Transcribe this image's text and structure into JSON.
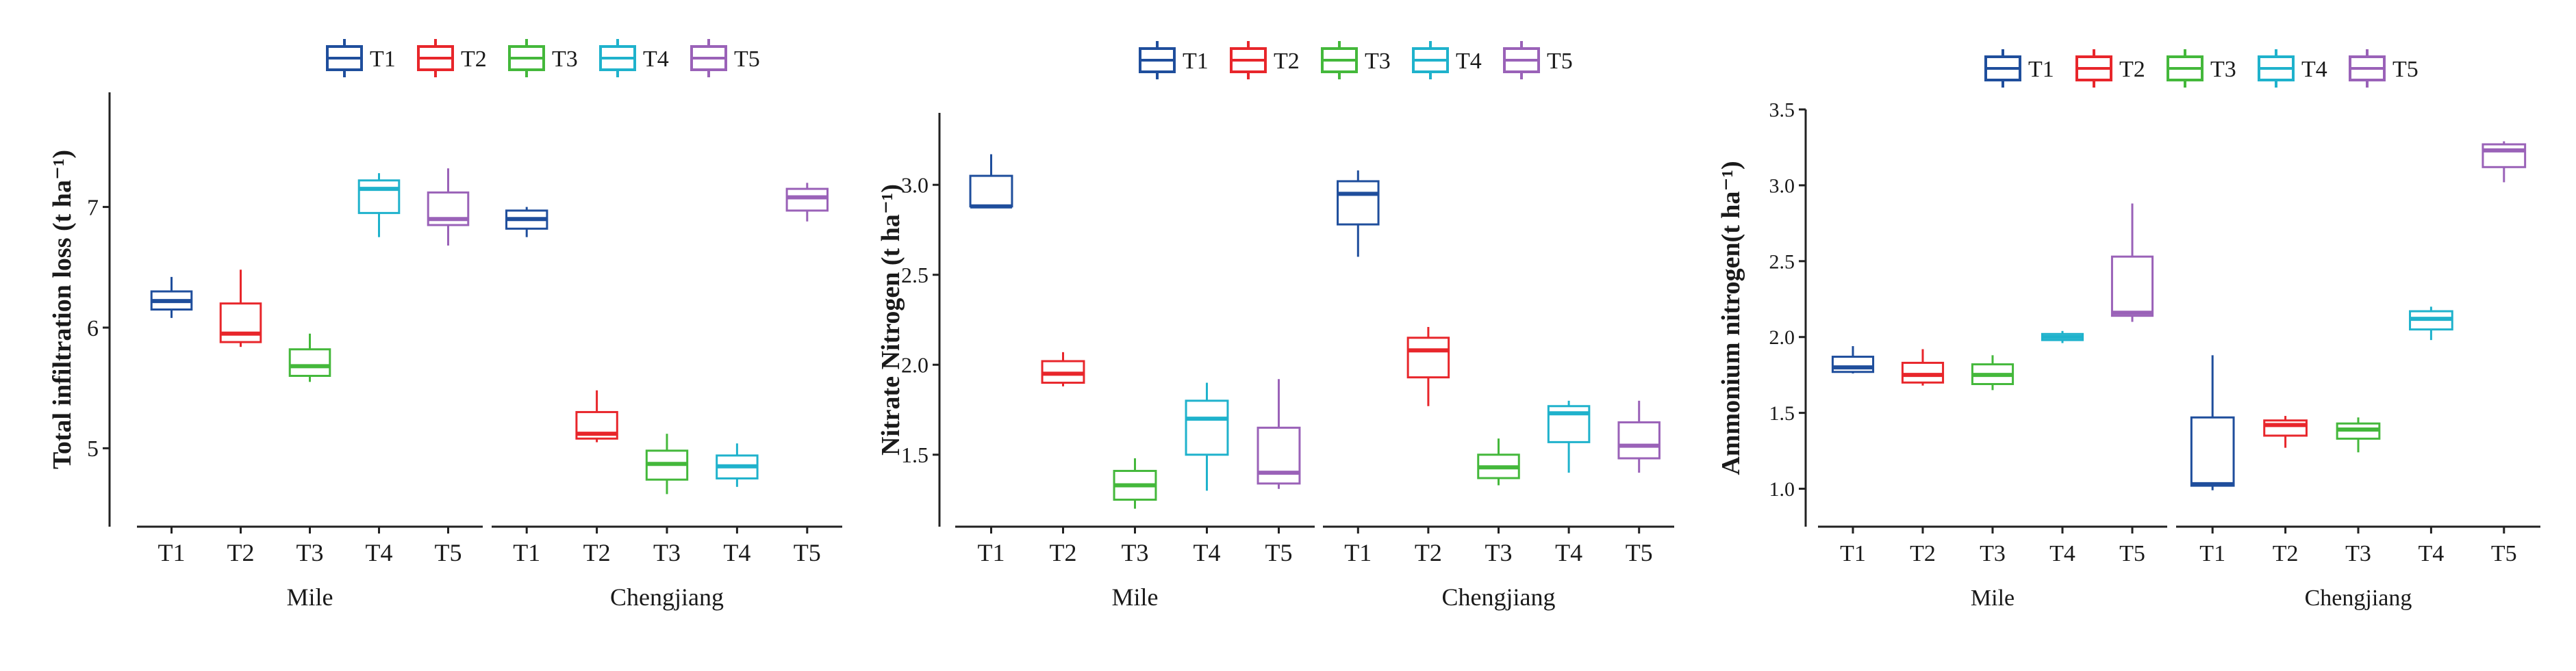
{
  "colors": {
    "T1": "#1f4e9c",
    "T2": "#e8262b",
    "T3": "#44b83b",
    "T4": "#1fb2cc",
    "T5": "#9a62b8",
    "axis": "#222222"
  },
  "chart_data": [
    {
      "type": "box",
      "title": "",
      "ylabel": "Total infiltration loss (t ha⁻¹)",
      "legend": [
        "T1",
        "T2",
        "T3",
        "T4",
        "T5"
      ],
      "legend_position": "top",
      "ylim": [
        4.35,
        7.95
      ],
      "yticks": [
        5,
        6,
        7
      ],
      "groups": [
        {
          "name": "Mile",
          "categories": [
            "T1",
            "T2",
            "T3",
            "T4",
            "T5"
          ],
          "boxes": [
            {
              "series": "T1",
              "min": 6.08,
              "q1": 6.15,
              "median": 6.22,
              "q3": 6.3,
              "max": 6.42
            },
            {
              "series": "T2",
              "min": 5.84,
              "q1": 5.88,
              "median": 5.95,
              "q3": 6.2,
              "max": 6.48
            },
            {
              "series": "T3",
              "min": 5.55,
              "q1": 5.6,
              "median": 5.68,
              "q3": 5.82,
              "max": 5.95
            },
            {
              "series": "T4",
              "min": 6.75,
              "q1": 6.95,
              "median": 7.15,
              "q3": 7.22,
              "max": 7.28
            },
            {
              "series": "T5",
              "min": 6.68,
              "q1": 6.85,
              "median": 6.9,
              "q3": 7.12,
              "max": 7.32
            }
          ]
        },
        {
          "name": "Chengjiang",
          "categories": [
            "T1",
            "T2",
            "T3",
            "T4",
            "T5"
          ],
          "boxes": [
            {
              "series": "T1",
              "min": 6.75,
              "q1": 6.82,
              "median": 6.9,
              "q3": 6.97,
              "max": 7.0
            },
            {
              "series": "T2",
              "min": 5.05,
              "q1": 5.08,
              "median": 5.12,
              "q3": 5.3,
              "max": 5.48
            },
            {
              "series": "T3",
              "min": 4.62,
              "q1": 4.74,
              "median": 4.87,
              "q3": 4.98,
              "max": 5.12
            },
            {
              "series": "T4",
              "min": 4.68,
              "q1": 4.75,
              "median": 4.85,
              "q3": 4.94,
              "max": 5.04
            },
            {
              "series": "T5",
              "min": 6.88,
              "q1": 6.97,
              "median": 7.08,
              "q3": 7.15,
              "max": 7.2
            }
          ]
        }
      ]
    },
    {
      "type": "box",
      "title": "",
      "ylabel": "Nitrate Nitrogen (t ha⁻¹)",
      "legend": [
        "T1",
        "T2",
        "T3",
        "T4",
        "T5"
      ],
      "legend_position": "top",
      "ylim": [
        1.1,
        3.4
      ],
      "yticks": [
        1.5,
        2.0,
        2.5,
        3.0
      ],
      "yticklabels": [
        "1.5",
        "2.0",
        "2.5",
        "3.0"
      ],
      "groups": [
        {
          "name": "Mile",
          "categories": [
            "T1",
            "T2",
            "T3",
            "T4",
            "T5"
          ],
          "boxes": [
            {
              "series": "T1",
              "min": 2.88,
              "q1": 2.88,
              "median": 2.88,
              "q3": 3.05,
              "max": 3.17
            },
            {
              "series": "T2",
              "min": 1.88,
              "q1": 1.9,
              "median": 1.95,
              "q3": 2.02,
              "max": 2.07
            },
            {
              "series": "T3",
              "min": 1.2,
              "q1": 1.25,
              "median": 1.33,
              "q3": 1.41,
              "max": 1.48
            },
            {
              "series": "T4",
              "min": 1.3,
              "q1": 1.5,
              "median": 1.7,
              "q3": 1.8,
              "max": 1.9
            },
            {
              "series": "T5",
              "min": 1.31,
              "q1": 1.34,
              "median": 1.4,
              "q3": 1.65,
              "max": 1.92
            }
          ]
        },
        {
          "name": "Chengjiang",
          "categories": [
            "T1",
            "T2",
            "T3",
            "T4",
            "T5"
          ],
          "boxes": [
            {
              "series": "T1",
              "min": 2.6,
              "q1": 2.78,
              "median": 2.95,
              "q3": 3.02,
              "max": 3.08
            },
            {
              "series": "T2",
              "min": 1.77,
              "q1": 1.93,
              "median": 2.08,
              "q3": 2.15,
              "max": 2.21
            },
            {
              "series": "T3",
              "min": 1.33,
              "q1": 1.37,
              "median": 1.43,
              "q3": 1.5,
              "max": 1.59
            },
            {
              "series": "T4",
              "min": 1.4,
              "q1": 1.57,
              "median": 1.73,
              "q3": 1.77,
              "max": 1.8
            },
            {
              "series": "T5",
              "min": 1.4,
              "q1": 1.48,
              "median": 1.55,
              "q3": 1.68,
              "max": 1.8
            }
          ]
        }
      ]
    },
    {
      "type": "box",
      "title": "",
      "ylabel": "Ammonium nitrogen(t ha⁻¹)",
      "legend": [
        "T1",
        "T2",
        "T3",
        "T4",
        "T5"
      ],
      "legend_position": "top",
      "ylim": [
        0.75,
        3.5
      ],
      "yticks": [
        1.0,
        1.5,
        2.0,
        2.5,
        3.0,
        3.5
      ],
      "yticklabels": [
        "1.0",
        "1.5",
        "2.0",
        "2.5",
        "3.0",
        "3.5"
      ],
      "groups": [
        {
          "name": "Mile",
          "categories": [
            "T1",
            "T2",
            "T3",
            "T4",
            "T5"
          ],
          "boxes": [
            {
              "series": "T1",
              "min": 1.76,
              "q1": 1.77,
              "median": 1.8,
              "q3": 1.87,
              "max": 1.94
            },
            {
              "series": "T2",
              "min": 1.68,
              "q1": 1.7,
              "median": 1.75,
              "q3": 1.83,
              "max": 1.92
            },
            {
              "series": "T3",
              "min": 1.65,
              "q1": 1.69,
              "median": 1.75,
              "q3": 1.82,
              "max": 1.88
            },
            {
              "series": "T4",
              "min": 1.96,
              "q1": 1.98,
              "median": 2.0,
              "q3": 2.02,
              "max": 2.04
            },
            {
              "series": "T5",
              "min": 2.1,
              "q1": 2.14,
              "median": 2.16,
              "q3": 2.53,
              "max": 2.88
            }
          ]
        },
        {
          "name": "Chengjiang",
          "categories": [
            "T1",
            "T2",
            "T3",
            "T4",
            "T5"
          ],
          "boxes": [
            {
              "series": "T1",
              "min": 0.99,
              "q1": 1.02,
              "median": 1.03,
              "q3": 1.47,
              "max": 1.88
            },
            {
              "series": "T2",
              "min": 1.27,
              "q1": 1.35,
              "median": 1.42,
              "q3": 1.45,
              "max": 1.48
            },
            {
              "series": "T3",
              "min": 1.24,
              "q1": 1.33,
              "median": 1.39,
              "q3": 1.43,
              "max": 1.47
            },
            {
              "series": "T4",
              "min": 1.98,
              "q1": 2.05,
              "median": 2.12,
              "q3": 2.17,
              "max": 2.2
            },
            {
              "series": "T5",
              "min": 3.02,
              "q1": 3.12,
              "median": 3.23,
              "q3": 3.27,
              "max": 3.29
            }
          ]
        }
      ]
    }
  ]
}
